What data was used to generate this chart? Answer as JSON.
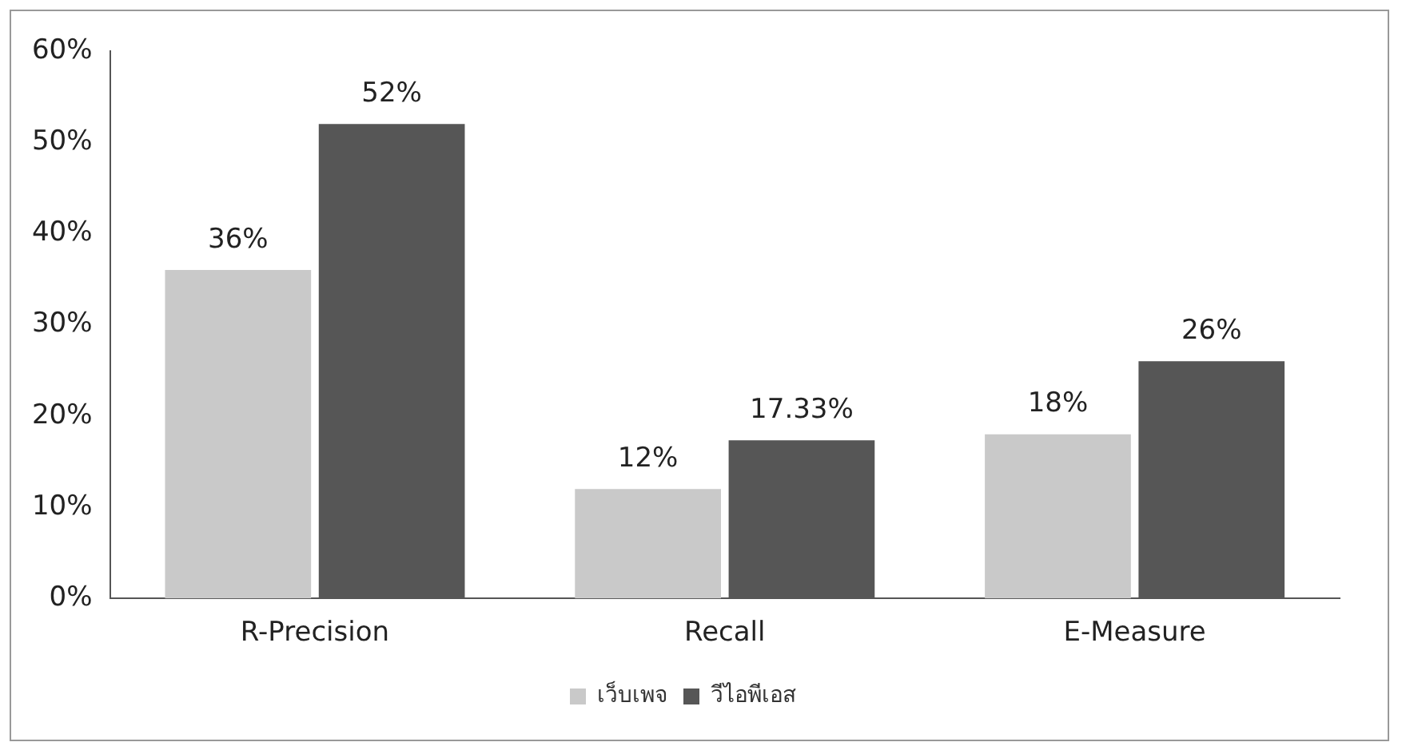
{
  "chart_data": {
    "type": "bar",
    "categories": [
      "R-Precision",
      "Recall",
      "E-Measure"
    ],
    "series": [
      {
        "name": "เว็บเพจ",
        "color": "#c9c9c9",
        "values": [
          36,
          12,
          18
        ],
        "value_labels": [
          "36%",
          "12%",
          "18%"
        ]
      },
      {
        "name": "วีไอพีเอส",
        "color": "#565656",
        "values": [
          52,
          17.33,
          26
        ],
        "value_labels": [
          "52%",
          "17.33%",
          "26%"
        ]
      }
    ],
    "ylim": [
      0,
      60
    ],
    "yticks": [
      {
        "value": 0,
        "label": "0%"
      },
      {
        "value": 10,
        "label": "10%"
      },
      {
        "value": 20,
        "label": "20%"
      },
      {
        "value": 30,
        "label": "30%"
      },
      {
        "value": 40,
        "label": "40%"
      },
      {
        "value": 50,
        "label": "50%"
      },
      {
        "value": 60,
        "label": "60%"
      }
    ],
    "grid": false,
    "legend": "bottom"
  }
}
